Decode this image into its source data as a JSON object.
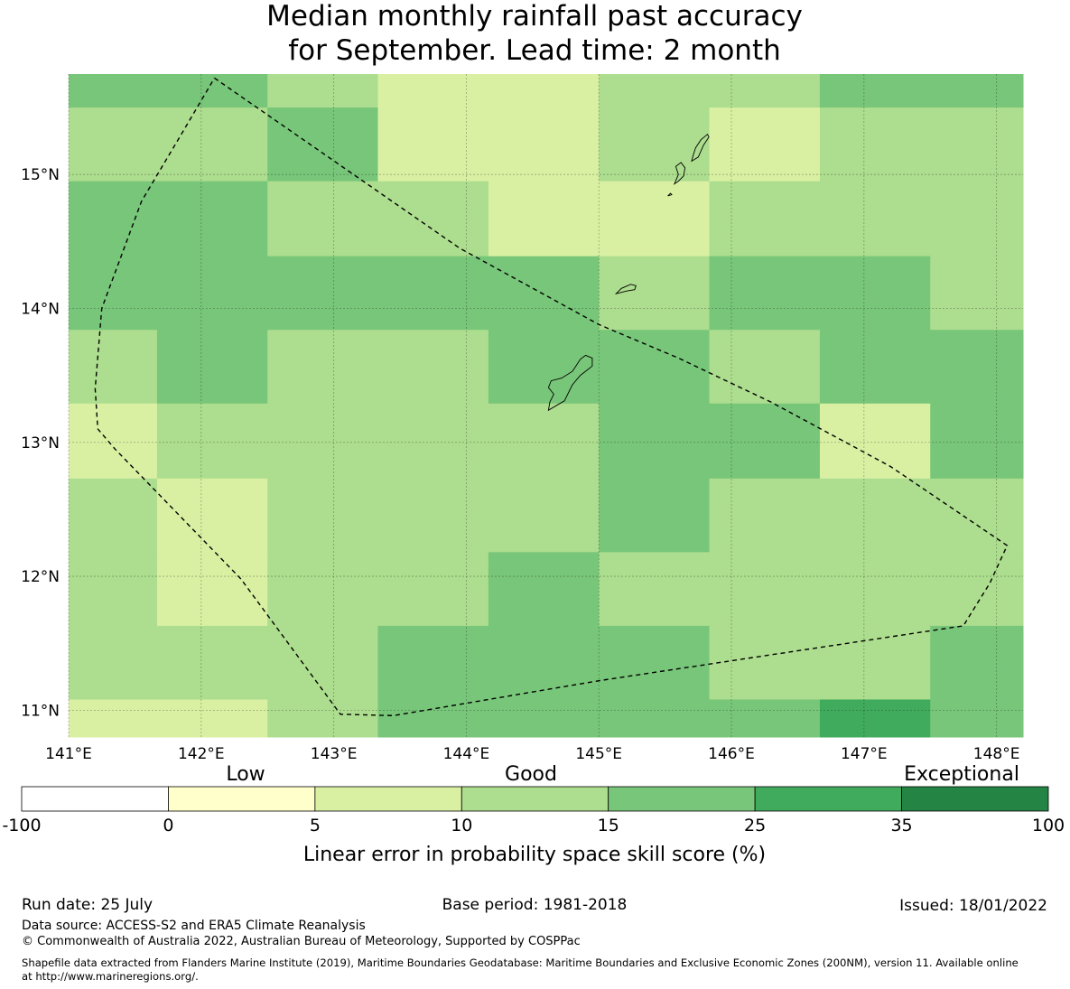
{
  "title_line1": "Median monthly rainfall past accuracy",
  "title_line2": "for September. Lead time: 2 month",
  "map": {
    "lon_range": [
      141.0,
      148.2
    ],
    "lat_range": [
      10.8,
      15.75
    ],
    "lon_ticks": [
      141,
      142,
      143,
      144,
      145,
      146,
      147,
      148
    ],
    "lon_tick_labels": [
      "141°E",
      "142°E",
      "143°E",
      "144°E",
      "145°E",
      "146°E",
      "147°E",
      "148°E"
    ],
    "lat_ticks": [
      11,
      12,
      13,
      14,
      15
    ],
    "lat_tick_labels": [
      "11°N",
      "12°N",
      "13°N",
      "14°N",
      "15°N"
    ],
    "gridlines": true,
    "col_edges_lon": [
      141.0,
      141.667,
      142.5,
      143.333,
      144.167,
      145.0,
      145.833,
      146.667,
      147.5,
      148.2
    ],
    "row_edges_lat": [
      15.75,
      15.5,
      14.95,
      14.39,
      13.84,
      13.29,
      12.73,
      12.18,
      11.63,
      11.08,
      10.8
    ],
    "skill_class_grid": [
      [
        4,
        4,
        3,
        2,
        2,
        3,
        3,
        4,
        4
      ],
      [
        3,
        3,
        4,
        2,
        2,
        3,
        2,
        3,
        3
      ],
      [
        4,
        4,
        3,
        3,
        2,
        2,
        3,
        3,
        3
      ],
      [
        4,
        4,
        4,
        4,
        4,
        3,
        4,
        4,
        3
      ],
      [
        3,
        4,
        3,
        3,
        4,
        4,
        3,
        4,
        4
      ],
      [
        2,
        3,
        3,
        3,
        3,
        4,
        4,
        2,
        4
      ],
      [
        3,
        2,
        3,
        3,
        3,
        4,
        3,
        3,
        3
      ],
      [
        3,
        2,
        3,
        3,
        4,
        3,
        3,
        3,
        3
      ],
      [
        3,
        3,
        3,
        4,
        4,
        4,
        3,
        3,
        4
      ],
      [
        2,
        2,
        3,
        4,
        4,
        4,
        4,
        5,
        4
      ]
    ],
    "boundary_line_style": "dashed",
    "boundary_lonlat": [
      [
        142.1,
        15.72
      ],
      [
        143.95,
        14.45
      ],
      [
        145.0,
        13.88
      ],
      [
        145.6,
        13.63
      ],
      [
        146.3,
        13.3
      ],
      [
        147.2,
        12.82
      ],
      [
        148.08,
        12.23
      ],
      [
        147.95,
        11.95
      ],
      [
        147.75,
        11.63
      ],
      [
        145.0,
        11.22
      ],
      [
        143.45,
        10.96
      ],
      [
        143.05,
        10.97
      ],
      [
        142.3,
        11.98
      ],
      [
        141.35,
        12.95
      ],
      [
        141.22,
        13.1
      ],
      [
        141.2,
        13.4
      ],
      [
        141.25,
        14.0
      ],
      [
        141.55,
        14.8
      ],
      [
        141.85,
        15.3
      ],
      [
        142.1,
        15.72
      ]
    ],
    "islands_lonlat": [
      [
        [
          144.62,
          13.24
        ],
        [
          144.74,
          13.31
        ],
        [
          144.8,
          13.43
        ],
        [
          144.86,
          13.5
        ],
        [
          144.95,
          13.57
        ],
        [
          144.95,
          13.63
        ],
        [
          144.9,
          13.65
        ],
        [
          144.86,
          13.62
        ],
        [
          144.8,
          13.53
        ],
        [
          144.72,
          13.48
        ],
        [
          144.64,
          13.46
        ],
        [
          144.62,
          13.41
        ],
        [
          144.66,
          13.36
        ],
        [
          144.63,
          13.3
        ],
        [
          144.62,
          13.24
        ]
      ],
      [
        [
          145.13,
          14.11
        ],
        [
          145.17,
          14.15
        ],
        [
          145.24,
          14.18
        ],
        [
          145.28,
          14.17
        ],
        [
          145.27,
          14.14
        ],
        [
          145.21,
          14.13
        ],
        [
          145.13,
          14.11
        ]
      ],
      [
        [
          145.57,
          14.93
        ],
        [
          145.6,
          14.95
        ],
        [
          145.64,
          14.99
        ],
        [
          145.65,
          15.05
        ],
        [
          145.62,
          15.09
        ],
        [
          145.58,
          15.06
        ],
        [
          145.6,
          15.0
        ],
        [
          145.57,
          14.93
        ]
      ],
      [
        [
          145.52,
          14.84
        ],
        [
          145.55,
          14.85
        ],
        [
          145.54,
          14.86
        ],
        [
          145.52,
          14.84
        ]
      ],
      [
        [
          145.7,
          15.1
        ],
        [
          145.75,
          15.13
        ],
        [
          145.79,
          15.22
        ],
        [
          145.83,
          15.28
        ],
        [
          145.82,
          15.3
        ],
        [
          145.77,
          15.26
        ],
        [
          145.73,
          15.2
        ],
        [
          145.71,
          15.14
        ],
        [
          145.7,
          15.1
        ]
      ]
    ]
  },
  "legend": {
    "category_labels": [
      "Low",
      "Good",
      "Exceptional"
    ],
    "bin_edges": [
      -100,
      0,
      5,
      10,
      15,
      25,
      35,
      100
    ],
    "edge_labels": [
      "-100",
      "0",
      "5",
      "10",
      "15",
      "25",
      "35",
      "100"
    ],
    "colors": [
      "#ffffff",
      "#ffffcc",
      "#d9f0a3",
      "#addd8e",
      "#78c679",
      "#41ab5d",
      "#238443"
    ],
    "xlabel": "Linear error in probability space skill score (%)"
  },
  "footer": {
    "run_date": "Run date: 25 July",
    "base_period": "Base period: 1981-2018",
    "issued": "Issued: 18/01/2022",
    "data_source": "Data source: ACCESS-S2 and ERA5 Climate Reanalysis",
    "copyright": "© Commonwealth of Australia 2022, Australian Bureau of Meteorology, Supported by COSPPac",
    "shapefile_line1": "Shapefile data extracted from Flanders Marine Institute (2019), Maritime Boundaries Geodatabase: Maritime Boundaries and Exclusive Economic Zones (200NM), version 11. Available online",
    "shapefile_line2": "at http://www.marineregions.org/."
  }
}
